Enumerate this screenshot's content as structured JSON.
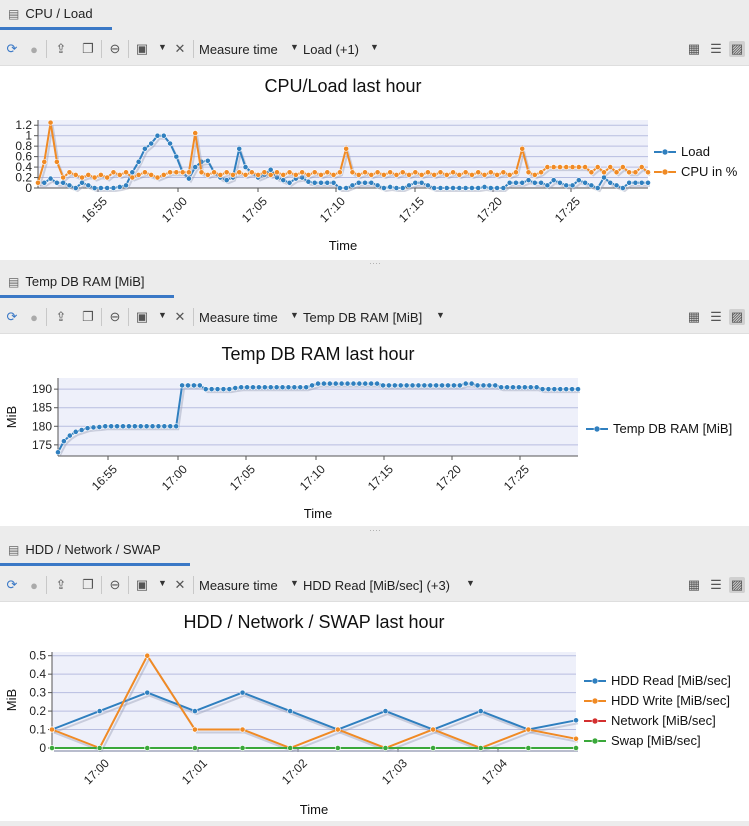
{
  "panels": [
    {
      "tab_label": "CPU / Load",
      "toolbar": {
        "measure_label": "Measure time",
        "series_label": "Load (+1)"
      },
      "chart_data": {
        "type": "line",
        "title": "CPU/Load last hour",
        "xlabel": "Time",
        "ylabel": "",
        "x_ticks": [
          "16:55",
          "17:00",
          "17:05",
          "17:10",
          "17:15",
          "17:20",
          "17:25"
        ],
        "y_ticks": [
          "0",
          "0.2",
          "0.4",
          "0.6",
          "0.8",
          "1",
          "1.2"
        ],
        "ylim": [
          0,
          1.3
        ],
        "series": [
          {
            "name": "Load",
            "color": "#2f7fbf",
            "values": [
              0.1,
              0.1,
              0.18,
              0.1,
              0.1,
              0.05,
              0,
              0.1,
              0.05,
              0,
              0,
              0,
              0,
              0.02,
              0.05,
              0.3,
              0.5,
              0.75,
              0.85,
              1.0,
              1.0,
              0.85,
              0.6,
              0.3,
              0.18,
              0.4,
              0.5,
              0.52,
              0.3,
              0.2,
              0.15,
              0.2,
              0.75,
              0.4,
              0.3,
              0.2,
              0.25,
              0.35,
              0.2,
              0.15,
              0.1,
              0.18,
              0.2,
              0.12,
              0.1,
              0.1,
              0.1,
              0.1,
              0,
              0,
              0.05,
              0.1,
              0.1,
              0.1,
              0.05,
              0,
              0.02,
              0,
              0,
              0.05,
              0.1,
              0.1,
              0.05,
              0,
              0,
              0,
              0,
              0,
              0,
              0,
              0,
              0.02,
              0,
              0,
              0,
              0.1,
              0.1,
              0.1,
              0.15,
              0.1,
              0.1,
              0.05,
              0.15,
              0.1,
              0.05,
              0.05,
              0.15,
              0.1,
              0.05,
              0,
              0.2,
              0.1,
              0.05,
              0,
              0.1,
              0.1,
              0.1,
              0.1
            ]
          },
          {
            "name": "CPU in %",
            "color": "#f08a24",
            "values": [
              0.1,
              0.5,
              1.25,
              0.5,
              0.2,
              0.3,
              0.25,
              0.2,
              0.25,
              0.2,
              0.25,
              0.2,
              0.3,
              0.25,
              0.3,
              0.2,
              0.25,
              0.3,
              0.25,
              0.2,
              0.25,
              0.3,
              0.3,
              0.3,
              0.3,
              1.05,
              0.3,
              0.25,
              0.3,
              0.25,
              0.3,
              0.25,
              0.3,
              0.25,
              0.3,
              0.25,
              0.3,
              0.25,
              0.3,
              0.25,
              0.3,
              0.25,
              0.3,
              0.25,
              0.3,
              0.25,
              0.3,
              0.25,
              0.3,
              0.75,
              0.3,
              0.25,
              0.3,
              0.25,
              0.3,
              0.25,
              0.3,
              0.25,
              0.3,
              0.25,
              0.3,
              0.25,
              0.3,
              0.25,
              0.3,
              0.25,
              0.3,
              0.25,
              0.3,
              0.25,
              0.3,
              0.25,
              0.3,
              0.25,
              0.3,
              0.25,
              0.3,
              0.75,
              0.3,
              0.25,
              0.3,
              0.4,
              0.4,
              0.4,
              0.4,
              0.4,
              0.4,
              0.4,
              0.3,
              0.4,
              0.3,
              0.4,
              0.3,
              0.4,
              0.3,
              0.3,
              0.4,
              0.3
            ]
          }
        ]
      }
    },
    {
      "tab_label": "Temp DB RAM [MiB]",
      "toolbar": {
        "measure_label": "Measure time",
        "series_label": "Temp DB RAM [MiB]"
      },
      "chart_data": {
        "type": "line",
        "title": "Temp DB RAM last hour",
        "xlabel": "Time",
        "ylabel": "MiB",
        "x_ticks": [
          "16:55",
          "17:00",
          "17:05",
          "17:10",
          "17:15",
          "17:20",
          "17:25"
        ],
        "y_ticks": [
          "175",
          "180",
          "185",
          "190"
        ],
        "ylim": [
          172,
          193
        ],
        "series": [
          {
            "name": "Temp DB RAM [MiB]",
            "color": "#2f7fbf",
            "values": [
              173,
              176,
              177.5,
              178.5,
              179,
              179.5,
              179.7,
              179.8,
              180,
              180,
              180,
              180,
              180,
              180,
              180,
              180,
              180,
              180,
              180,
              180,
              180,
              191,
              191,
              191,
              191,
              190,
              190,
              190,
              190,
              190,
              190.3,
              190.5,
              190.5,
              190.5,
              190.5,
              190.5,
              190.5,
              190.5,
              190.5,
              190.5,
              190.5,
              190.5,
              190.5,
              191,
              191.5,
              191.5,
              191.5,
              191.5,
              191.5,
              191.5,
              191.5,
              191.5,
              191.5,
              191.5,
              191.5,
              191,
              191,
              191,
              191,
              191,
              191,
              191,
              191,
              191,
              191,
              191,
              191,
              191,
              191,
              191.5,
              191.5,
              191,
              191,
              191,
              191,
              190.5,
              190.5,
              190.5,
              190.5,
              190.5,
              190.5,
              190.5,
              190,
              190,
              190,
              190,
              190,
              190,
              190
            ]
          }
        ]
      }
    },
    {
      "tab_label": "HDD / Network / SWAP",
      "toolbar": {
        "measure_label": "Measure time",
        "series_label": "HDD Read [MiB/sec] (+3)"
      },
      "chart_data": {
        "type": "line",
        "title": "HDD / Network / SWAP last hour",
        "xlabel": "Time",
        "ylabel": "MiB",
        "x_ticks": [
          "17:00",
          "17:01",
          "17:02",
          "17:03",
          "17:04"
        ],
        "y_ticks": [
          "0",
          "0.1",
          "0.2",
          "0.3",
          "0.4",
          "0.5"
        ],
        "ylim": [
          0,
          0.52
        ],
        "series": [
          {
            "name": "HDD Read [MiB/sec]",
            "color": "#2f7fbf",
            "values": [
              0.1,
              0.2,
              0.3,
              0.2,
              0.3,
              0.2,
              0.1,
              0.2,
              0.1,
              0.2,
              0.1,
              0.15
            ]
          },
          {
            "name": "HDD Write [MiB/sec]",
            "color": "#f08a24",
            "values": [
              0.1,
              0,
              0.5,
              0.1,
              0.1,
              0,
              0.1,
              0,
              0.1,
              0,
              0.1,
              0.05
            ]
          },
          {
            "name": "Network [MiB/sec]",
            "color": "#d32f2f",
            "values": [
              0,
              0,
              0,
              0,
              0,
              0,
              0,
              0,
              0,
              0,
              0,
              0
            ]
          },
          {
            "name": "Swap [MiB/sec]",
            "color": "#3aa83a",
            "values": [
              0,
              0,
              0,
              0,
              0,
              0,
              0,
              0,
              0,
              0,
              0,
              0
            ]
          }
        ]
      }
    }
  ]
}
